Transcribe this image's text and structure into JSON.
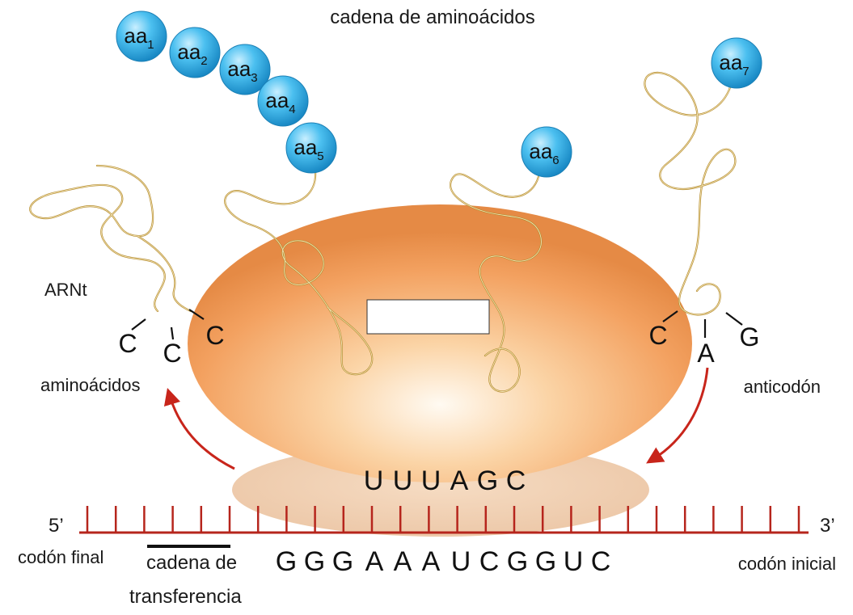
{
  "title": "cadena de aminoácidos",
  "labels": {
    "trna": "ARNt",
    "amino_acids": "aminoácidos",
    "anticodon": "anticodón",
    "five_prime": "5’",
    "three_prime": "3’",
    "stop_codon": "codón final",
    "transfer_chain_1": "cadena de",
    "transfer_chain_2": "transferencia",
    "start_codon": "codón inicial",
    "blank_box": ""
  },
  "amino_acids": [
    {
      "base": "aa",
      "sub": "1"
    },
    {
      "base": "aa",
      "sub": "2"
    },
    {
      "base": "aa",
      "sub": "3"
    },
    {
      "base": "aa",
      "sub": "4"
    },
    {
      "base": "aa",
      "sub": "5"
    },
    {
      "base": "aa",
      "sub": "6"
    },
    {
      "base": "aa",
      "sub": "7"
    }
  ],
  "left_trna_bases": [
    "C",
    "C",
    "C"
  ],
  "right_trna_bases": [
    "C",
    "A",
    "G"
  ],
  "ribosome_sequence": [
    "U",
    "U",
    "U",
    "A",
    "G",
    "C"
  ],
  "mrna_sequence": [
    "G",
    "G",
    "G",
    "A",
    "A",
    "A",
    "U",
    "C",
    "G",
    "G",
    "U",
    "C"
  ],
  "colors": {
    "ribosome": "#f4a15e",
    "amino_acid": "#38b4ec",
    "arrow": "#c8251b",
    "mrna": "#b6251c",
    "trna": "#b58b2e"
  }
}
